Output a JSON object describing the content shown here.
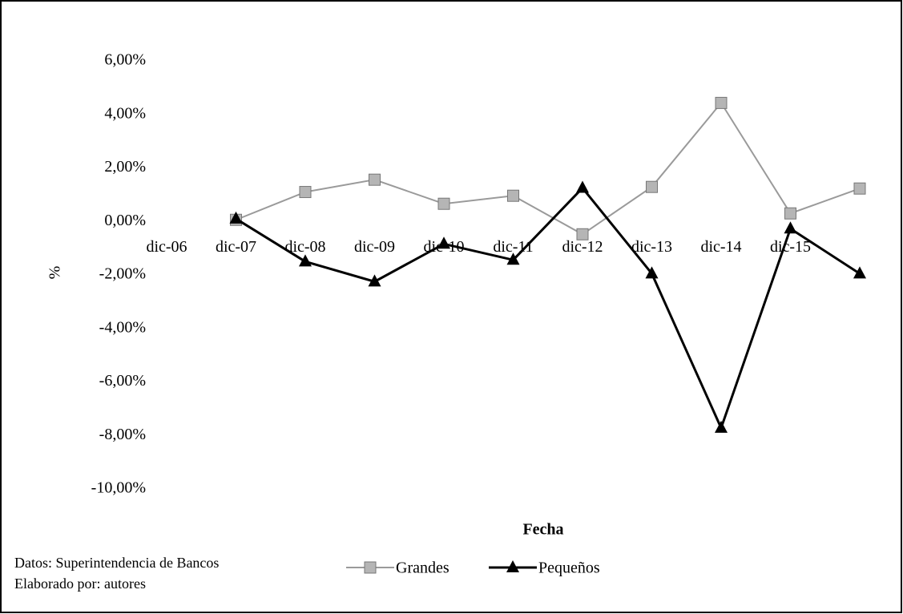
{
  "chart_data": {
    "type": "line",
    "categories": [
      "dic-06",
      "dic-07",
      "dic-08",
      "dic-09",
      "dic-10",
      "dic-11",
      "dic-12",
      "dic-13",
      "dic-14",
      "dic-15",
      null
    ],
    "series": [
      {
        "name": "Grandes",
        "color": "#9a9a9a",
        "marker": "square",
        "values": [
          null,
          0.06,
          1.1,
          1.56,
          0.66,
          0.96,
          -0.48,
          1.29,
          4.43,
          0.3,
          1.23
        ]
      },
      {
        "name": "Pequeños",
        "color": "#000000",
        "marker": "triangle",
        "values": [
          null,
          0.1,
          -1.5,
          -2.25,
          -0.84,
          -1.44,
          1.25,
          -1.95,
          -7.72,
          -0.27,
          -1.95
        ]
      }
    ],
    "ylim": [
      -10,
      6
    ],
    "yticks": [
      {
        "value": -10,
        "label": "-10,00%"
      },
      {
        "value": -8,
        "label": "-8,00%"
      },
      {
        "value": -6,
        "label": "-6,00%"
      },
      {
        "value": -4,
        "label": "-4,00%"
      },
      {
        "value": -2,
        "label": "-2,00%"
      },
      {
        "value": 0,
        "label": "0,00%"
      },
      {
        "value": 2,
        "label": "2,00%"
      },
      {
        "value": 4,
        "label": "4,00%"
      },
      {
        "value": 6,
        "label": "6,00%"
      }
    ],
    "ylabel": "%",
    "xlabel": "Fecha",
    "notes": [
      "Datos: Superintendencia de Bancos",
      "Elaborado por: autores"
    ],
    "grid": false
  }
}
